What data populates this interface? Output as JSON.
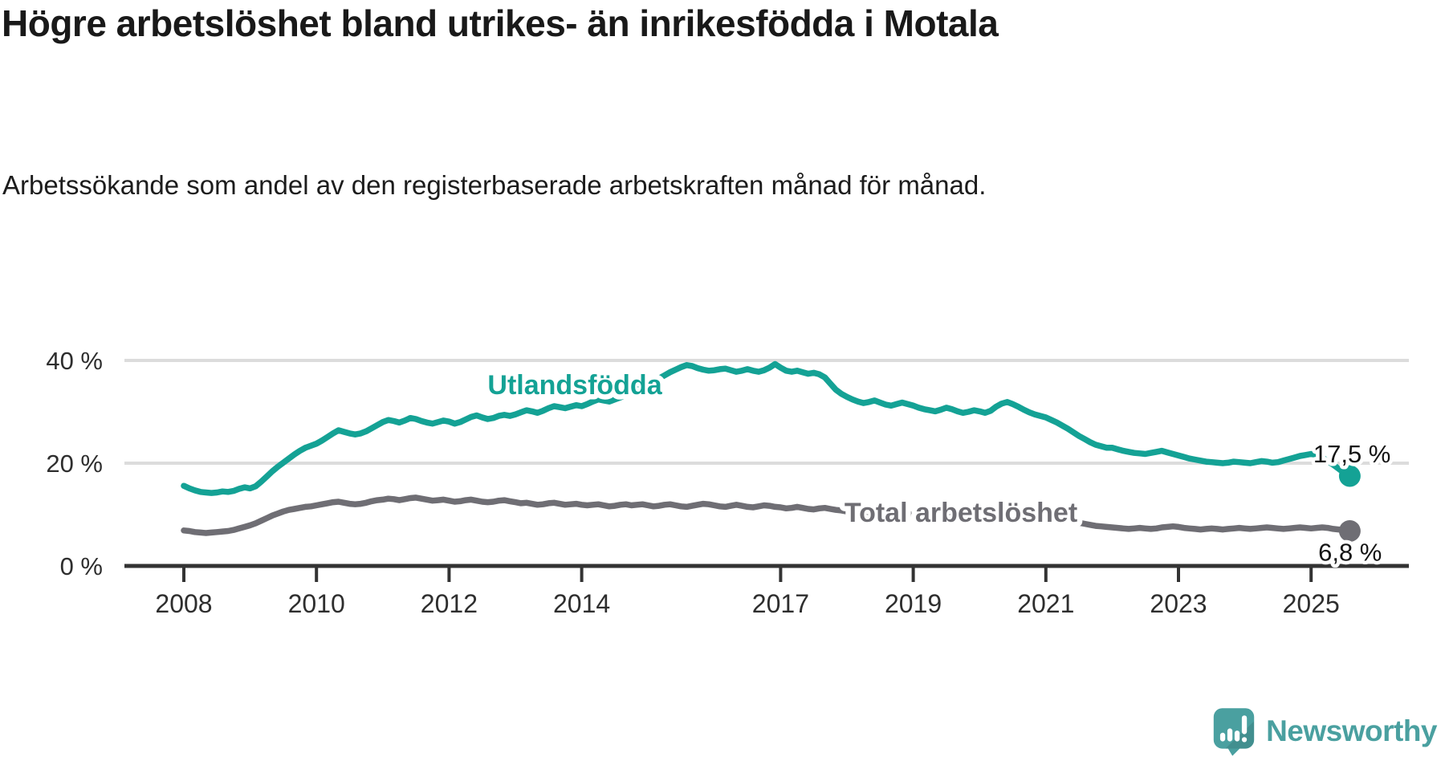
{
  "title": "Högre arbetslöshet bland utrikes- än inrikesfödda i Motala",
  "subtitle": "Arbetssökande som andel av den registerbaserade arbetskraften månad för månad.",
  "branding": {
    "name": "Newsworthy",
    "logo_color": "#4aa0a0",
    "logo_icon": "newsworthy-speech-bubble-bar-chart-icon"
  },
  "chart_data": {
    "type": "line",
    "x_unit": "month",
    "x_start": "2008-01",
    "x_end": "2025-08",
    "grid": true,
    "grid_color": "#dcdcdc",
    "axis_color": "#333333",
    "ylim": [
      0,
      43
    ],
    "yticks": [
      {
        "value": 0,
        "label": "0 %"
      },
      {
        "value": 20,
        "label": "20 %"
      },
      {
        "value": 40,
        "label": "40 %"
      }
    ],
    "xticks": [
      2008,
      2010,
      2012,
      2014,
      2017,
      2019,
      2021,
      2023,
      2025
    ],
    "series": [
      {
        "name": "Utlandsfödda",
        "color": "#14a295",
        "end_label": "17,5 %",
        "end_value": 17.5,
        "values": [
          15.6,
          15.1,
          14.7,
          14.4,
          14.3,
          14.2,
          14.3,
          14.5,
          14.4,
          14.6,
          15.0,
          15.3,
          15.1,
          15.5,
          16.4,
          17.4,
          18.4,
          19.3,
          20.1,
          20.9,
          21.7,
          22.4,
          23.0,
          23.4,
          23.8,
          24.4,
          25.1,
          25.8,
          26.4,
          26.1,
          25.8,
          25.6,
          25.8,
          26.2,
          26.8,
          27.4,
          28.0,
          28.4,
          28.2,
          27.9,
          28.3,
          28.8,
          28.6,
          28.2,
          27.9,
          27.7,
          28.0,
          28.3,
          28.1,
          27.7,
          28.0,
          28.5,
          29.0,
          29.3,
          28.9,
          28.6,
          28.8,
          29.2,
          29.4,
          29.2,
          29.5,
          29.9,
          30.3,
          30.1,
          29.8,
          30.2,
          30.7,
          31.1,
          30.9,
          30.7,
          31.0,
          31.3,
          31.1,
          31.5,
          32.0,
          32.4,
          32.2,
          32.0,
          32.4,
          32.8,
          33.3,
          33.8,
          34.3,
          34.8,
          35.3,
          35.9,
          36.5,
          37.1,
          37.7,
          38.2,
          38.7,
          39.1,
          38.9,
          38.5,
          38.2,
          38.0,
          38.1,
          38.3,
          38.4,
          38.1,
          37.8,
          38.0,
          38.3,
          38.0,
          37.8,
          38.1,
          38.6,
          39.3,
          38.6,
          38.0,
          37.8,
          38.0,
          37.7,
          37.4,
          37.6,
          37.3,
          36.7,
          35.5,
          34.3,
          33.5,
          32.9,
          32.4,
          32.0,
          31.7,
          31.9,
          32.2,
          31.8,
          31.4,
          31.2,
          31.5,
          31.8,
          31.5,
          31.2,
          30.8,
          30.5,
          30.3,
          30.1,
          30.4,
          30.8,
          30.5,
          30.1,
          29.8,
          30.0,
          30.3,
          30.1,
          29.8,
          30.2,
          31.0,
          31.6,
          31.9,
          31.5,
          31.0,
          30.4,
          29.9,
          29.5,
          29.2,
          28.9,
          28.4,
          27.9,
          27.3,
          26.7,
          26.0,
          25.3,
          24.7,
          24.1,
          23.6,
          23.3,
          23.0,
          23.0,
          22.7,
          22.4,
          22.2,
          22.0,
          21.9,
          21.8,
          22.0,
          22.2,
          22.4,
          22.1,
          21.8,
          21.5,
          21.2,
          20.9,
          20.7,
          20.5,
          20.3,
          20.2,
          20.1,
          20.0,
          20.1,
          20.3,
          20.2,
          20.1,
          20.0,
          20.2,
          20.4,
          20.3,
          20.1,
          20.2,
          20.5,
          20.8,
          21.1,
          21.4,
          21.6,
          21.8,
          21.6,
          21.1,
          20.4,
          19.7,
          18.9,
          18.1,
          17.5
        ]
      },
      {
        "name": "Total arbetslöshet",
        "color": "#6f6e74",
        "end_label": "6,8 %",
        "end_value": 6.8,
        "values": [
          6.9,
          6.8,
          6.6,
          6.5,
          6.4,
          6.5,
          6.6,
          6.7,
          6.8,
          7.0,
          7.3,
          7.6,
          7.9,
          8.3,
          8.8,
          9.3,
          9.8,
          10.2,
          10.6,
          10.9,
          11.1,
          11.3,
          11.5,
          11.6,
          11.8,
          12.0,
          12.2,
          12.4,
          12.5,
          12.3,
          12.1,
          12.0,
          12.1,
          12.3,
          12.6,
          12.8,
          12.9,
          13.1,
          13.0,
          12.8,
          13.0,
          13.2,
          13.3,
          13.1,
          12.9,
          12.7,
          12.8,
          12.9,
          12.7,
          12.5,
          12.6,
          12.8,
          12.9,
          12.7,
          12.5,
          12.4,
          12.5,
          12.7,
          12.8,
          12.6,
          12.4,
          12.2,
          12.3,
          12.1,
          11.9,
          12.0,
          12.2,
          12.3,
          12.1,
          11.9,
          12.0,
          12.1,
          11.9,
          11.8,
          11.9,
          12.0,
          11.8,
          11.6,
          11.7,
          11.9,
          12.0,
          11.8,
          11.9,
          12.0,
          11.8,
          11.6,
          11.7,
          11.9,
          12.0,
          11.8,
          11.6,
          11.5,
          11.7,
          11.9,
          12.1,
          12.0,
          11.8,
          11.6,
          11.5,
          11.7,
          11.9,
          11.7,
          11.5,
          11.4,
          11.6,
          11.8,
          11.7,
          11.5,
          11.4,
          11.2,
          11.3,
          11.5,
          11.3,
          11.1,
          11.0,
          11.2,
          11.3,
          11.1,
          10.9,
          10.8,
          10.6,
          10.4,
          10.3,
          10.5,
          10.4,
          10.2,
          10.1,
          10.3,
          10.4,
          10.2,
          10.1,
          10.0,
          10.1,
          10.0,
          9.9,
          10.0,
          10.2,
          10.1,
          10.0,
          9.9,
          10.1,
          10.2,
          10.1,
          10.3,
          10.5,
          10.7,
          11.1,
          11.5,
          11.8,
          11.9,
          11.7,
          11.5,
          11.2,
          10.9,
          10.7,
          10.5,
          10.2,
          9.9,
          9.6,
          9.3,
          9.0,
          8.7,
          8.4,
          8.2,
          8.0,
          7.8,
          7.7,
          7.6,
          7.5,
          7.4,
          7.3,
          7.2,
          7.3,
          7.4,
          7.3,
          7.2,
          7.3,
          7.5,
          7.6,
          7.7,
          7.6,
          7.4,
          7.3,
          7.2,
          7.1,
          7.2,
          7.3,
          7.2,
          7.1,
          7.2,
          7.3,
          7.4,
          7.3,
          7.2,
          7.3,
          7.4,
          7.5,
          7.4,
          7.3,
          7.2,
          7.3,
          7.4,
          7.5,
          7.4,
          7.3,
          7.4,
          7.5,
          7.4,
          7.2,
          7.1,
          7.0,
          6.8
        ]
      }
    ]
  }
}
